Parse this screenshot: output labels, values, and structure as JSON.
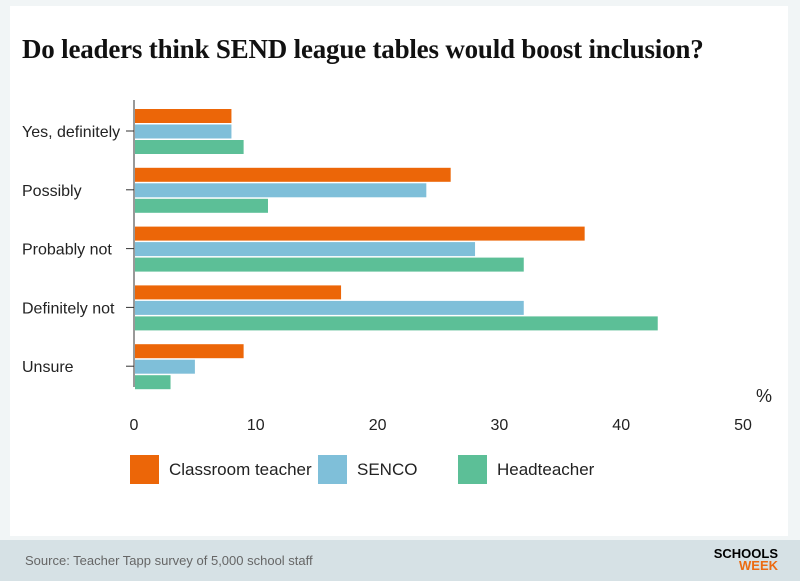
{
  "chart_data": {
    "type": "bar",
    "orientation": "horizontal",
    "title": "Do leaders think SEND league tables would boost inclusion?",
    "categories": [
      "Yes, definitely",
      "Possibly",
      "Probably not",
      "Definitely not",
      "Unsure"
    ],
    "series": [
      {
        "name": "Classroom teacher",
        "color": "#ec6608",
        "values": [
          8,
          26,
          37,
          17,
          9
        ]
      },
      {
        "name": "SENCO",
        "color": "#7fbfd9",
        "values": [
          8,
          24,
          28,
          32,
          5
        ]
      },
      {
        "name": "Headteacher",
        "color": "#5cbf97",
        "values": [
          9,
          11,
          32,
          43,
          3
        ]
      }
    ],
    "xlabel": "%",
    "xlim": [
      0,
      50
    ],
    "xticks": [
      0,
      10,
      20,
      30,
      40,
      50
    ],
    "grid": false,
    "legend": "bottom"
  },
  "footer": {
    "source": "Source: Teacher Tapp survey of 5,000 school staff",
    "logo_top": "SCHOOLS",
    "logo_bottom": "WEEK"
  }
}
